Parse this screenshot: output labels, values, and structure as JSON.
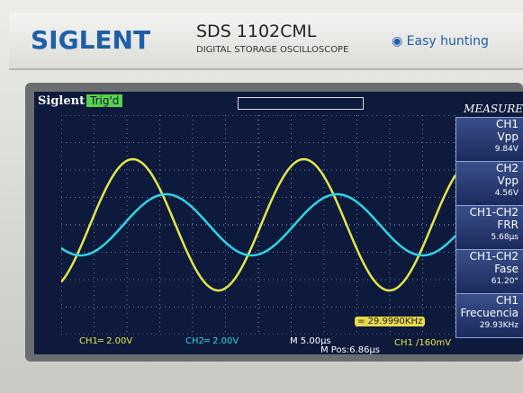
{
  "header": {
    "brand": "SIGLENT",
    "model": "SDS 1102CML",
    "subtitle": "DIGITAL STORAGE OSCILLOSCOPE",
    "slogan": "Easy hunting"
  },
  "screen": {
    "brand": "Siglent",
    "status": "Trig'd",
    "menu_title": "MEASURE",
    "measurements": [
      {
        "source": "CH1",
        "name": "Vpp",
        "value": "9.84V"
      },
      {
        "source": "CH2",
        "name": "Vpp",
        "value": "4.56V"
      },
      {
        "source": "CH1-CH2",
        "name": "FRR",
        "value": "5.68μs"
      },
      {
        "source": "CH1-CH2",
        "name": "Fase",
        "value": "61.20°"
      },
      {
        "source": "CH1",
        "name": "Frecuencia",
        "value": "29.93KHz"
      }
    ],
    "frequency_counter": "= 29.9990KHz",
    "footer": {
      "ch1_scale": "CH1═ 2.00V",
      "ch2_scale": "CH2═ 2.00V",
      "timebase": "M 5.00μs",
      "position": "M Pos:6.86μs",
      "trigger": "CH1 ∕160mV"
    }
  }
}
